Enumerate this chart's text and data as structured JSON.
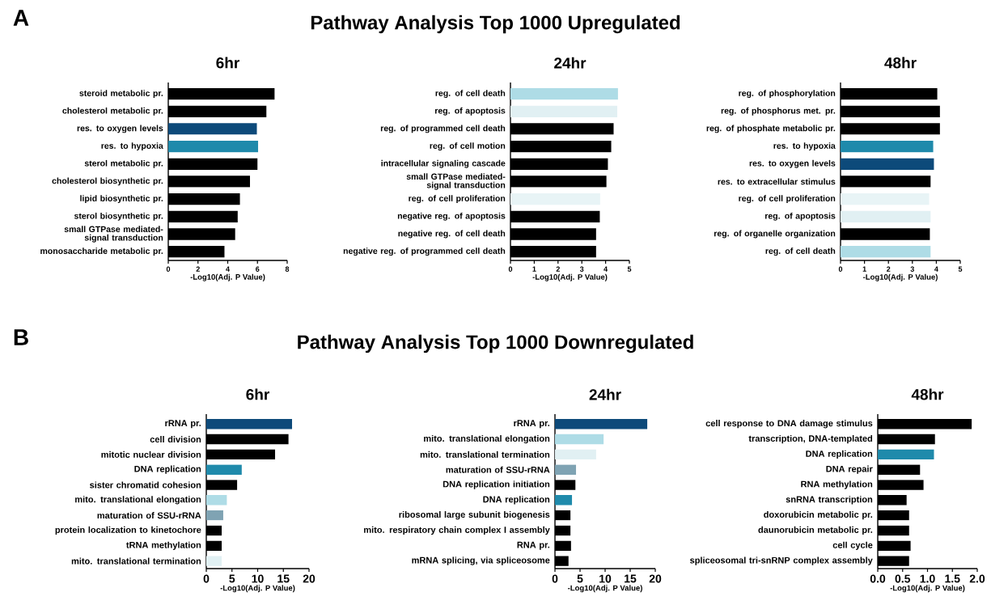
{
  "chart_data": [
    {
      "type": "bar",
      "orientation": "horizontal",
      "title": "6hr",
      "xlabel": "-Log10(Adj. P Value)",
      "annotations": [
        "A",
        "Pathway Analysis Top 1000 Upregulated"
      ],
      "categories": [
        "steroid metabolic pr.",
        "cholesterol metabolic pr.",
        "res. to oxygen levels",
        "res. to hypoxia",
        "sterol metabolic pr.",
        "cholesterol biosynthetic pr.",
        "lipid biosynthetic pr.",
        "sterol biosynthetic pr.",
        "small GTPase mediated-signal transduction",
        "monosaccharide metabolic pr."
      ],
      "values": [
        7.15,
        6.6,
        5.96,
        6.05,
        6.0,
        5.5,
        4.82,
        4.67,
        4.5,
        3.78
      ],
      "colors": [
        "#000000",
        "#000000",
        "#0d4a7a",
        "#1f8aab",
        "#000000",
        "#000000",
        "#000000",
        "#000000",
        "#000000",
        "#000000"
      ],
      "xlim": [
        0,
        8
      ],
      "xticks": [
        0,
        2,
        4,
        6,
        8
      ]
    },
    {
      "type": "bar",
      "orientation": "horizontal",
      "title": "24hr",
      "xlabel": "-Log10(Adj. P Value)",
      "categories": [
        "reg. of cell death",
        "reg. of apoptosis",
        "reg. of programmed cell death",
        "reg. of cell motion",
        "intracellular signaling cascade",
        "small GTPase mediated-signal transduction",
        "reg. of cell proliferation",
        "negative reg. of apoptosis",
        "negative reg. of cell death",
        "negative reg. of programmed cell death"
      ],
      "values": [
        4.52,
        4.49,
        4.34,
        4.24,
        4.1,
        4.04,
        3.77,
        3.76,
        3.6,
        3.6
      ],
      "colors": [
        "#aedce6",
        "#e1f0f3",
        "#000000",
        "#000000",
        "#000000",
        "#000000",
        "#e8f4f6",
        "#000000",
        "#000000",
        "#000000"
      ],
      "xlim": [
        0,
        5
      ],
      "xticks": [
        0,
        1,
        2,
        3,
        4,
        5
      ]
    },
    {
      "type": "bar",
      "orientation": "horizontal",
      "title": "48hr",
      "xlabel": "-Log10(Adj. P Value)",
      "categories": [
        "reg. of phosphorylation",
        "reg. of phosphorus met. pr.",
        "reg. of phosphate metabolic pr.",
        "res. to hypoxia",
        "res. to oxygen levels",
        "res. to extracellular stimulus",
        "reg. of cell proliferation",
        "reg. of apoptosis",
        "reg. of organelle organization",
        "reg. of cell death"
      ],
      "values": [
        4.04,
        4.15,
        4.15,
        3.87,
        3.9,
        3.76,
        3.7,
        3.76,
        3.73,
        3.76
      ],
      "colors": [
        "#000000",
        "#000000",
        "#000000",
        "#1f8aab",
        "#0d4a7a",
        "#000000",
        "#e8f4f6",
        "#e1f0f3",
        "#000000",
        "#aedce6"
      ],
      "xlim": [
        0,
        5
      ],
      "xticks": [
        0,
        1,
        2,
        3,
        4,
        5
      ]
    },
    {
      "type": "bar",
      "orientation": "horizontal",
      "title": "6hr",
      "xlabel": "-Log10(Adj. P Value)",
      "annotations": [
        "B",
        "Pathway Analysis Top 1000 Downregulated"
      ],
      "categories": [
        "rRNA pr.",
        "cell division",
        "mitotic nuclear division",
        "DNA replication",
        "sister chromatid cohesion",
        "mito. translational elongation",
        "maturation of SSU-rRNA",
        "protein localization to kinetochore",
        "tRNA methylation",
        "mito. translational termination"
      ],
      "values": [
        16.7,
        16.0,
        13.4,
        6.9,
        6.0,
        4.0,
        3.3,
        3.0,
        3.0,
        3.0
      ],
      "colors": [
        "#0d4a7a",
        "#000000",
        "#000000",
        "#1f8aab",
        "#000000",
        "#aedce6",
        "#7fa3b3",
        "#000000",
        "#000000",
        "#e1f0f3"
      ],
      "xlim": [
        0,
        20
      ],
      "xticks": [
        0,
        5,
        10,
        15,
        20
      ]
    },
    {
      "type": "bar",
      "orientation": "horizontal",
      "title": "24hr",
      "xlabel": "-Log10(Adj. P Value)",
      "categories": [
        "rRNA pr.",
        "mito. translational elongation",
        "mito. translational termination",
        "maturation of SSU-rRNA",
        "DNA replication initiation",
        "DNA replication",
        "ribosomal large subunit biogenesis",
        "mito. respiratory chain complex I assembly",
        "RNA pr.",
        "mRNA splicing, via spliceosome"
      ],
      "values": [
        18.4,
        9.7,
        8.2,
        4.2,
        4.1,
        3.4,
        3.1,
        3.1,
        3.2,
        2.7
      ],
      "colors": [
        "#0d4a7a",
        "#aedce6",
        "#e1f0f3",
        "#7fa3b3",
        "#000000",
        "#1f8aab",
        "#000000",
        "#000000",
        "#000000",
        "#000000"
      ],
      "xlim": [
        0,
        20
      ],
      "xticks": [
        0,
        5,
        10,
        15,
        20
      ]
    },
    {
      "type": "bar",
      "orientation": "horizontal",
      "title": "48hr",
      "xlabel": "-Log10(Adj. P Value)",
      "categories": [
        "cell response to DNA damage stimulus",
        "transcription, DNA-templated",
        "DNA replication",
        "DNA repair",
        "RNA methylation",
        "snRNA transcription",
        "doxorubicin metabolic pr.",
        "daunorubicin metabolic pr.",
        "cell cycle",
        "spliceosomal tri-snRNP complex assembly"
      ],
      "values": [
        1.89,
        1.15,
        1.13,
        0.85,
        0.92,
        0.58,
        0.63,
        0.63,
        0.66,
        0.63
      ],
      "colors": [
        "#000000",
        "#000000",
        "#1f8aab",
        "#000000",
        "#000000",
        "#000000",
        "#000000",
        "#000000",
        "#000000",
        "#000000"
      ],
      "xlim": [
        0,
        2
      ],
      "xticks": [
        {
          "value": 0,
          "label": "0.0"
        },
        {
          "value": 0.5,
          "label": "0.5"
        },
        {
          "value": 1,
          "label": "1.0"
        },
        {
          "value": 1.5,
          "label": "1.5"
        },
        {
          "value": 2,
          "label": "2.0"
        }
      ]
    }
  ]
}
